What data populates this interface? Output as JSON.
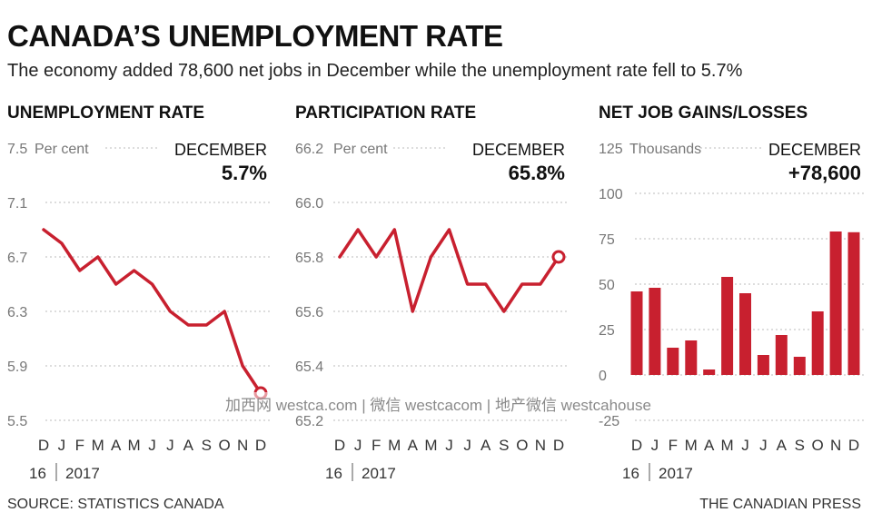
{
  "header": {
    "title": "CANADA’S UNEMPLOYMENT RATE",
    "subtitle": "The economy added 78,600 net jobs in December while the unemployment rate fell to 5.7%"
  },
  "colors": {
    "series": "#c8202f",
    "grid": "#bbbbbb",
    "axis_text": "#777777"
  },
  "chart_data": [
    {
      "type": "line",
      "title": "UNEMPLOYMENT RATE",
      "unit": "Per cent",
      "callout_label": "DECEMBER",
      "callout_value": "5.7%",
      "x": [
        "D",
        "J",
        "F",
        "M",
        "A",
        "M",
        "J",
        "J",
        "A",
        "S",
        "O",
        "N",
        "D"
      ],
      "year_labels": [
        "16",
        "2017"
      ],
      "values": [
        6.9,
        6.8,
        6.6,
        6.7,
        6.5,
        6.6,
        6.5,
        6.3,
        6.2,
        6.2,
        6.3,
        5.9,
        5.7
      ],
      "ylim": [
        5.5,
        7.5
      ],
      "yticks": [
        "7.5",
        "7.1",
        "6.7",
        "6.3",
        "5.9",
        "5.5"
      ],
      "marker_last": true
    },
    {
      "type": "line",
      "title": "PARTICIPATION RATE",
      "unit": "Per cent",
      "callout_label": "DECEMBER",
      "callout_value": "65.8%",
      "x": [
        "D",
        "J",
        "F",
        "M",
        "A",
        "M",
        "J",
        "J",
        "A",
        "S",
        "O",
        "N",
        "D"
      ],
      "year_labels": [
        "16",
        "2017"
      ],
      "values": [
        65.8,
        65.9,
        65.8,
        65.9,
        65.6,
        65.8,
        65.9,
        65.7,
        65.7,
        65.6,
        65.7,
        65.7,
        65.8
      ],
      "ylim": [
        65.2,
        66.2
      ],
      "yticks": [
        "66.2",
        "66.0",
        "65.8",
        "65.6",
        "65.4",
        "65.2"
      ],
      "marker_last": true
    },
    {
      "type": "bar",
      "title": "NET JOB GAINS/LOSSES",
      "unit": "Thousands",
      "callout_label": "DECEMBER",
      "callout_value": "+78,600",
      "x": [
        "D",
        "J",
        "F",
        "M",
        "A",
        "M",
        "J",
        "J",
        "A",
        "S",
        "O",
        "N",
        "D"
      ],
      "year_labels": [
        "16",
        "2017"
      ],
      "values": [
        46,
        48,
        15,
        19,
        3,
        54,
        45,
        11,
        22,
        10,
        35,
        79,
        78.6
      ],
      "ylim": [
        -25,
        125
      ],
      "yticks": [
        "125",
        "100",
        "75",
        "50",
        "25",
        "0",
        "-25"
      ]
    }
  ],
  "footer": {
    "source": "SOURCE: STATISTICS CANADA",
    "credit": "THE CANADIAN PRESS"
  },
  "watermark": "加西网 westca.com | 微信 westcacom | 地产微信 westcahouse"
}
